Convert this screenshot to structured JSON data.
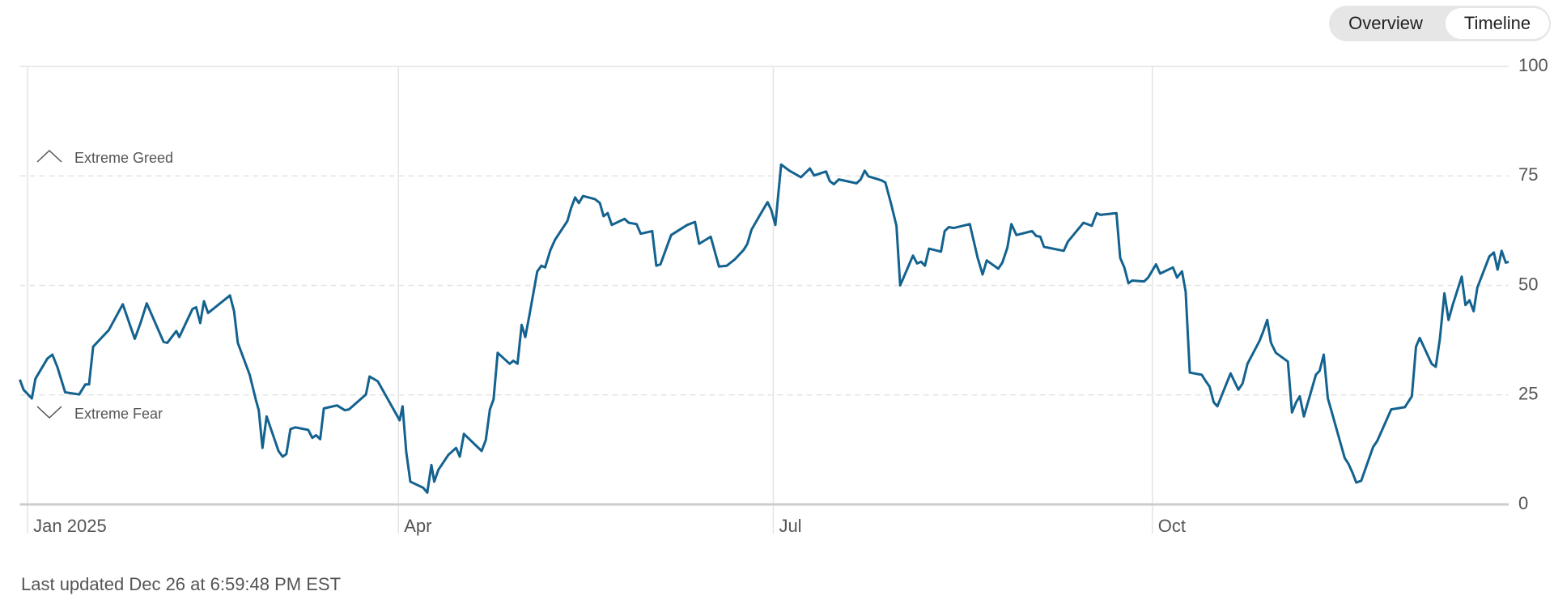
{
  "tabs": [
    "Overview",
    "Timeline"
  ],
  "footer": "Last updated Dec 26 at 6:59:48 PM EST",
  "chart_data": {
    "type": "line",
    "annotations": [
      "Extreme Greed",
      "Extreme Fear"
    ],
    "xlim": [
      -1.9,
      359.5
    ],
    "xticks": [
      {
        "value": 0,
        "label": "Jan 2025"
      },
      {
        "value": 90,
        "label": "Apr"
      },
      {
        "value": 181,
        "label": "Jul"
      },
      {
        "value": 273,
        "label": "Oct"
      }
    ],
    "ylim": [
      0,
      100
    ],
    "yticks": [
      0,
      25,
      50,
      75,
      100
    ],
    "grid": true,
    "color": "#13628f",
    "x": [
      -1.9,
      -1.0,
      1.0,
      1.9,
      4.8,
      6.0,
      7.2,
      9.1,
      12.5,
      14.0,
      14.9,
      15.9,
      19.7,
      23.1,
      26.0,
      27.4,
      28.9,
      33.0,
      33.9,
      36.1,
      36.8,
      40.0,
      40.9,
      41.9,
      42.8,
      43.8,
      49.1,
      50.1,
      51.0,
      53.9,
      55.4,
      56.1,
      57.0,
      58.0,
      60.9,
      61.9,
      62.8,
      63.8,
      65.0,
      68.1,
      69.1,
      70.0,
      71.0,
      71.9,
      75.1,
      77.0,
      78.0,
      82.1,
      83.0,
      85.0,
      90.3,
      91.0,
      91.9,
      92.9,
      96.0,
      97.0,
      98.0,
      98.7,
      99.7,
      102.1,
      104.0,
      104.9,
      105.9,
      110.2,
      111.2,
      112.2,
      113.1,
      114.1,
      117.0,
      117.9,
      118.9,
      119.9,
      120.8,
      121.8,
      123.7,
      124.7,
      125.6,
      126.9,
      128.0,
      131.0,
      131.9,
      132.9,
      133.8,
      134.8,
      137.7,
      138.9,
      139.8,
      140.8,
      141.8,
      144.9,
      145.9,
      147.8,
      148.8,
      151.6,
      152.6,
      153.6,
      156.2,
      160.1,
      162.0,
      163.0,
      165.8,
      167.8,
      169.7,
      171.6,
      173.8,
      174.7,
      175.7,
      177.6,
      179.6,
      180.5,
      181.5,
      182.9,
      184.9,
      187.7,
      189.9,
      190.9,
      193.8,
      194.7,
      195.7,
      196.9,
      201.2,
      202.2,
      203.2,
      204.1,
      207.2,
      208.2,
      209.6,
      210.9,
      211.8,
      214.9,
      215.9,
      216.9,
      217.8,
      218.8,
      221.7,
      222.6,
      223.6,
      224.8,
      228.7,
      230.6,
      231.8,
      232.8,
      235.6,
      236.6,
      237.8,
      238.8,
      240.0,
      243.8,
      244.8,
      245.8,
      246.7,
      251.5,
      252.5,
      256.3,
      258.3,
      259.5,
      260.4,
      264.3,
      265.2,
      266.2,
      267.2,
      268.1,
      271.0,
      272.0,
      273.9,
      274.9,
      278.0,
      279.0,
      280.2,
      281.1,
      282.1,
      285.0,
      286.0,
      286.9,
      287.9,
      288.8,
      292.0,
      293.9,
      294.9,
      296.1,
      299.0,
      299.9,
      300.9,
      301.8,
      303.0,
      305.9,
      306.9,
      307.9,
      308.8,
      309.8,
      312.7,
      313.6,
      314.6,
      315.6,
      316.5,
      319.7,
      320.6,
      321.6,
      322.5,
      323.7,
      326.6,
      327.6,
      331.0,
      334.3,
      336.0,
      337.0,
      337.9,
      340.8,
      341.8,
      342.8,
      343.9,
      344.9,
      345.9,
      348.1,
      349.0,
      350.0,
      351.0,
      351.9,
      354.8,
      355.9,
      356.8,
      357.8,
      358.8,
      359.5
    ],
    "values": [
      28.5,
      26.2,
      24.2,
      28.7,
      33.3,
      34.2,
      31.4,
      25.6,
      25.1,
      27.4,
      27.4,
      36,
      39.8,
      45.7,
      37.8,
      41.4,
      45.9,
      37.1,
      36.9,
      39.6,
      38.2,
      44.6,
      45,
      41.4,
      46.4,
      43.7,
      47.7,
      44.1,
      36.9,
      29.6,
      23.8,
      21.5,
      12.9,
      20.1,
      12.2,
      10.9,
      11.5,
      17.2,
      17.6,
      17,
      15.2,
      15.8,
      14.9,
      21.9,
      22.6,
      21.5,
      21.7,
      25.1,
      29.2,
      28.1,
      19.2,
      22.4,
      12,
      5.2,
      3.8,
      2.7,
      9,
      5.2,
      7.9,
      11.3,
      12.9,
      10.9,
      16.1,
      12.2,
      14.7,
      21.7,
      24,
      34.6,
      32.1,
      32.8,
      32.1,
      41,
      38.2,
      43.2,
      53.2,
      54.5,
      54.1,
      58.1,
      60.4,
      64.7,
      67.6,
      70.1,
      68.8,
      70.4,
      69.7,
      68.8,
      65.8,
      66.5,
      63.8,
      65.2,
      64.3,
      64,
      61.8,
      62.4,
      54.5,
      54.8,
      61.5,
      63.8,
      64.5,
      59.5,
      61.1,
      54.3,
      54.5,
      55.9,
      58.1,
      59.5,
      62.7,
      65.8,
      69,
      67.2,
      63.8,
      77.6,
      76.2,
      74.7,
      76.7,
      75.1,
      76,
      73.8,
      73.1,
      74.2,
      73.3,
      74.2,
      76.2,
      74.9,
      74,
      73.5,
      68.6,
      63.6,
      50,
      56.8,
      55,
      55.4,
      54.5,
      58.4,
      57.7,
      62.4,
      63.3,
      63.1,
      64,
      56.3,
      52.5,
      55.7,
      53.8,
      55.2,
      58.6,
      64,
      61.5,
      62.4,
      61.3,
      61.1,
      58.8,
      57.9,
      60,
      64.3,
      63.6,
      66.5,
      66.1,
      66.5,
      56.3,
      54.1,
      50.5,
      51.1,
      50.9,
      51.8,
      54.8,
      52.7,
      54.1,
      51.8,
      53.2,
      48.6,
      30.1,
      29.6,
      28.1,
      26.9,
      23.3,
      22.4,
      29.9,
      26.2,
      27.6,
      32.1,
      37.3,
      39.4,
      42.1,
      36.9,
      34.6,
      32.6,
      21,
      23.3,
      24.7,
      20.1,
      29.6,
      30.5,
      34.2,
      24.2,
      21.3,
      10.6,
      9.3,
      7.2,
      5,
      5.4,
      13.1,
      14.5,
      21.7,
      22.2,
      24.7,
      36,
      38,
      32.1,
      31.4,
      37.8,
      48.2,
      42.1,
      45.5,
      52,
      45.5,
      46.6,
      44.1,
      49.5,
      56.6,
      57.5,
      53.6,
      57.9,
      55.2,
      55.4
    ]
  }
}
